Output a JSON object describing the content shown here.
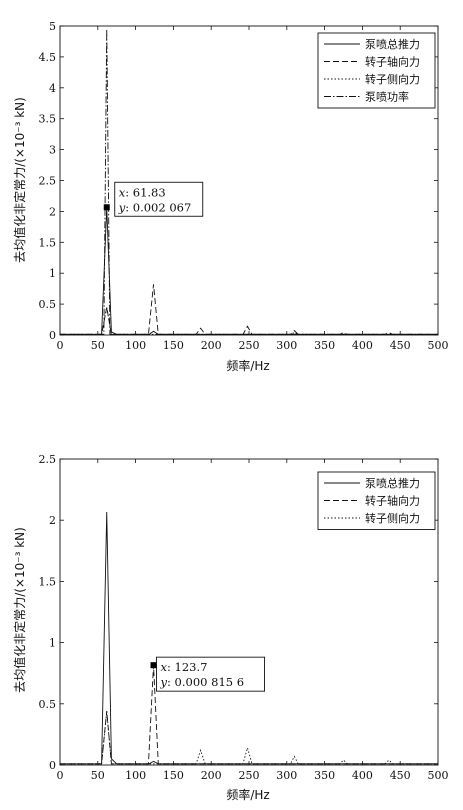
{
  "chart_data": [
    {
      "type": "line",
      "xlabel": "频率/Hz",
      "ylabel": "去均值化非定常力/(×10⁻³ kN)",
      "xlim": [
        0,
        500
      ],
      "ylim": [
        0,
        5
      ],
      "xticks": [
        0,
        50,
        100,
        150,
        200,
        250,
        300,
        350,
        400,
        450,
        500
      ],
      "yticks": [
        0,
        0.5,
        1,
        1.5,
        2,
        2.5,
        3,
        3.5,
        4,
        4.5,
        5
      ],
      "ytick_labels": [
        "0",
        "0.5",
        "1",
        "1.5",
        "2",
        "2.5",
        "3",
        "3.5",
        "4",
        "4.5",
        "5"
      ],
      "grid": false,
      "legend_position": "top-right",
      "series": [
        {
          "name": "泵喷总推力",
          "dash": "solid",
          "x": [
            0,
            55,
            61.83,
            68,
            75,
            118,
            123.7,
            130,
            500
          ],
          "y": [
            0.01,
            0.01,
            2.067,
            0.05,
            0.01,
            0.01,
            0.06,
            0.01,
            0.01
          ]
        },
        {
          "name": "转子轴向力",
          "dash": "dashed",
          "x": [
            0,
            55,
            61.83,
            68,
            75,
            117,
            123.7,
            130,
            180,
            186,
            192,
            242,
            248,
            254,
            305,
            310,
            315,
            370,
            375,
            380,
            430,
            435,
            440,
            500
          ],
          "y": [
            0.01,
            0.01,
            0.45,
            0.01,
            0.01,
            0.01,
            0.82,
            0.01,
            0.01,
            0.11,
            0.01,
            0.01,
            0.14,
            0.01,
            0.01,
            0.07,
            0.01,
            0.01,
            0.04,
            0.01,
            0.01,
            0.04,
            0.01,
            0.01
          ]
        },
        {
          "name": "转子侧向力",
          "dash": "dotted",
          "x": [
            0,
            55,
            61.83,
            68,
            75,
            118,
            123.7,
            130,
            305,
            310,
            315,
            500
          ],
          "y": [
            0.01,
            0.01,
            0.45,
            0.01,
            0.01,
            0.01,
            0.06,
            0.01,
            0.01,
            0.04,
            0.01,
            0.01
          ]
        },
        {
          "name": "泵喷功率",
          "dash": "dashdot",
          "x": [
            0,
            58,
            61.83,
            66,
            72,
            500
          ],
          "y": [
            0.01,
            0.01,
            4.95,
            0.01,
            0.01,
            0.01
          ]
        }
      ],
      "datatip": {
        "x": 61.83,
        "y": 2.067,
        "x_label": "x",
        "x_text": ": 61.83",
        "y_label": "y",
        "y_text": ": 0.002 067"
      }
    },
    {
      "type": "line",
      "xlabel": "频率/Hz",
      "ylabel": "去均值化非定常力/(×10⁻³ kN)",
      "xlim": [
        0,
        500
      ],
      "ylim": [
        0,
        2.5
      ],
      "xticks": [
        0,
        50,
        100,
        150,
        200,
        250,
        300,
        350,
        400,
        450,
        500
      ],
      "yticks": [
        0,
        0.5,
        1,
        1.5,
        2,
        2.5
      ],
      "ytick_labels": [
        "0",
        "0.5",
        "1",
        "1.5",
        "2",
        "2.5"
      ],
      "grid": false,
      "legend_position": "top-right",
      "series": [
        {
          "name": "泵喷总推力",
          "dash": "solid",
          "x": [
            0,
            55,
            61.83,
            68,
            75,
            118,
            123.7,
            130,
            500
          ],
          "y": [
            0.01,
            0.01,
            2.067,
            0.05,
            0.01,
            0.01,
            0.03,
            0.01,
            0.01
          ]
        },
        {
          "name": "转子轴向力",
          "dash": "dashed",
          "x": [
            0,
            55,
            61.83,
            68,
            75,
            117,
            123.7,
            130,
            500
          ],
          "y": [
            0.01,
            0.01,
            0.44,
            0.01,
            0.01,
            0.01,
            0.8156,
            0.01,
            0.01
          ]
        },
        {
          "name": "转子侧向力",
          "dash": "dotted",
          "x": [
            0,
            55,
            61.83,
            68,
            75,
            180,
            186,
            192,
            242,
            248,
            254,
            305,
            310,
            315,
            370,
            375,
            380,
            430,
            435,
            440,
            500
          ],
          "y": [
            0.01,
            0.01,
            0.44,
            0.01,
            0.01,
            0.01,
            0.12,
            0.01,
            0.01,
            0.14,
            0.01,
            0.01,
            0.07,
            0.01,
            0.01,
            0.04,
            0.01,
            0.01,
            0.04,
            0.01,
            0.01
          ]
        }
      ],
      "datatip": {
        "x": 123.7,
        "y": 0.8156,
        "x_label": "x",
        "x_text": ": 123.7",
        "y_label": "y",
        "y_text": ": 0.000 815 6"
      }
    }
  ]
}
